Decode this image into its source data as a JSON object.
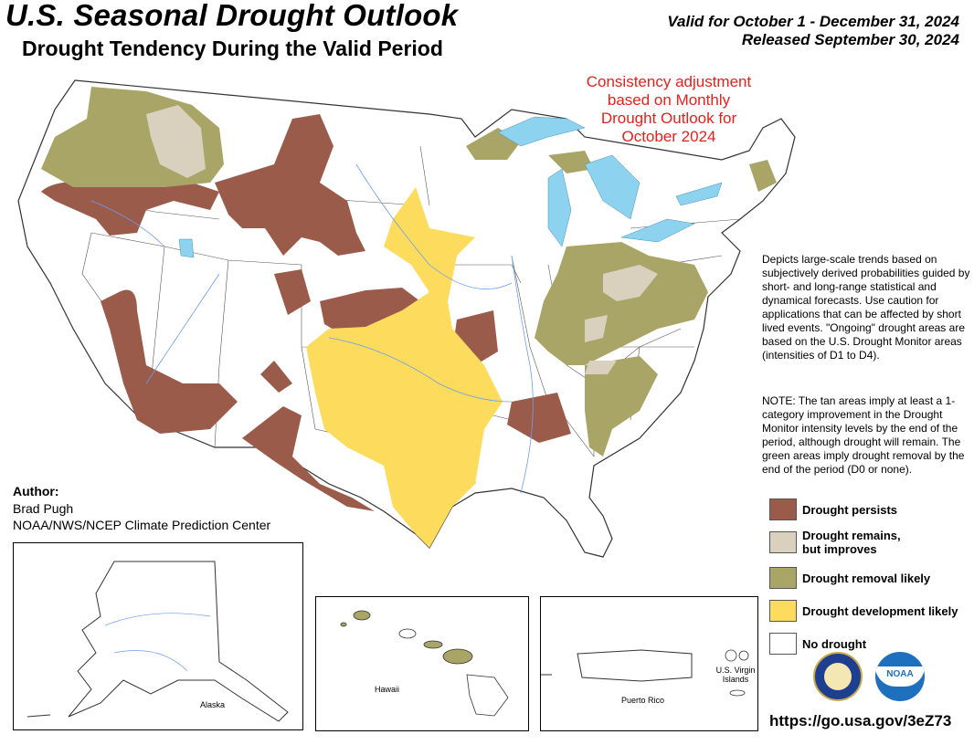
{
  "header": {
    "title": "U.S. Seasonal Drought Outlook",
    "subtitle": "Drought Tendency During the Valid Period",
    "valid": "Valid for October 1 - December 31, 2024",
    "released": "Released September 30, 2024"
  },
  "consistency_note": [
    "Consistency adjustment",
    "based on Monthly",
    "Drought Outlook for",
    "October 2024"
  ],
  "description": "Depicts large-scale trends based on subjectively derived probabilities guided by short- and long-range statistical and dynamical forecasts. Use caution for applications that can be affected by short lived events. \"Ongoing\" drought areas are based on the U.S. Drought Monitor areas (intensities of D1 to D4).",
  "note": "NOTE: The tan areas imply at least a 1-category improvement in the Drought Monitor intensity levels by the end of the period, although drought will remain. The green areas imply drought removal by the end of the period (D0 or none).",
  "author": {
    "heading": "Author:",
    "name": "Brad Pugh",
    "org": "NOAA/NWS/NCEP Climate Prediction Center"
  },
  "legend": [
    {
      "label": "Drought persists",
      "color": "#9b5b4a"
    },
    {
      "label": "Drought remains, but improves",
      "color": "#d9d0bd"
    },
    {
      "label": "Drought removal likely",
      "color": "#a8a566"
    },
    {
      "label": "Drought development likely",
      "color": "#fcdb5d"
    },
    {
      "label": "No drought",
      "color": "#ffffff"
    }
  ],
  "insets": {
    "alaska": "Alaska",
    "hawaii": "Hawaii",
    "puerto_rico": "Puerto Rico",
    "virgin_islands": "U.S. Virgin Islands"
  },
  "url": "https://go.usa.gov/3eZ73",
  "logos": {
    "doc": "DEPARTMENT OF COMMERCE",
    "noaa": "NOAA"
  },
  "colors": {
    "water": "#8dd3ef",
    "rivers": "#6b9ef0",
    "boundary": "#333333",
    "alert_text": "#e8201c"
  }
}
